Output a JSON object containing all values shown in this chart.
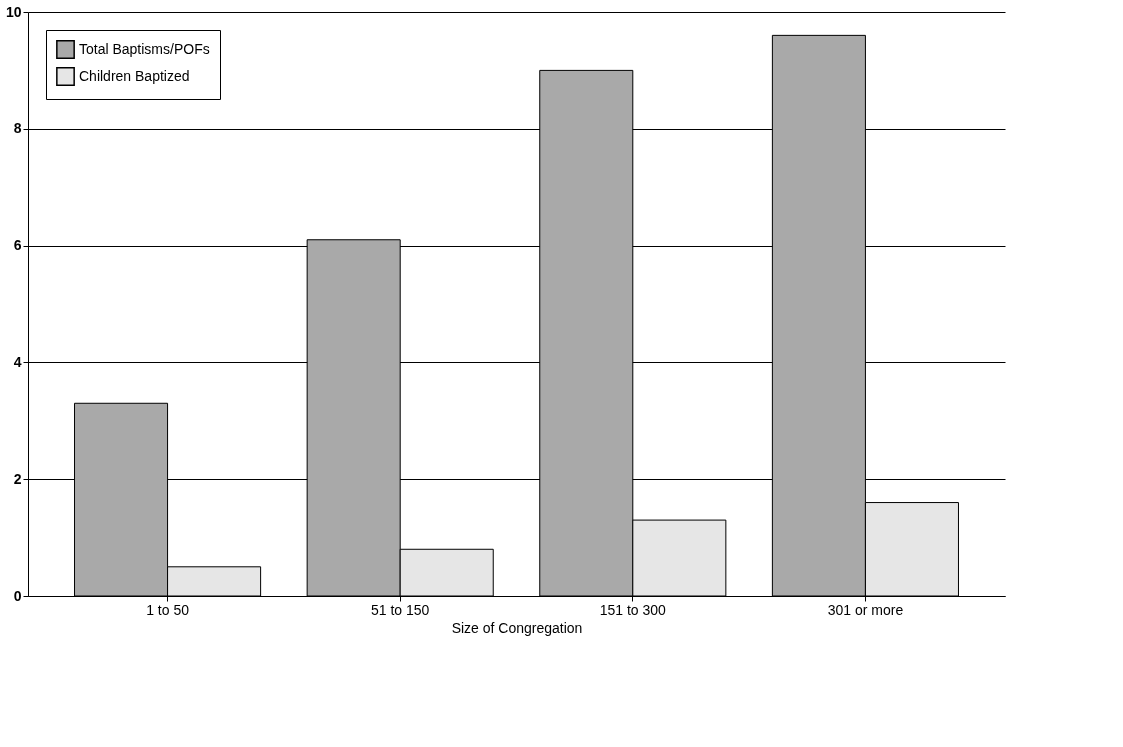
{
  "chart_data": {
    "type": "bar",
    "xlabel": "Size of Congregation",
    "categories": [
      "1 to 50",
      "51 to 150",
      "151 to 300",
      "301 or more"
    ],
    "series": [
      {
        "name": "Total Baptisms/POFs",
        "color": "#a9a9a9",
        "values": [
          3.3,
          6.1,
          9.0,
          9.6
        ]
      },
      {
        "name": "Children Baptized",
        "color": "#e6e6e6",
        "values": [
          0.5,
          0.8,
          1.3,
          1.6
        ]
      }
    ],
    "ylim": [
      0,
      10
    ],
    "yticks": [
      0,
      2,
      4,
      6,
      8,
      10
    ],
    "grid": "y",
    "legend": "top left"
  }
}
